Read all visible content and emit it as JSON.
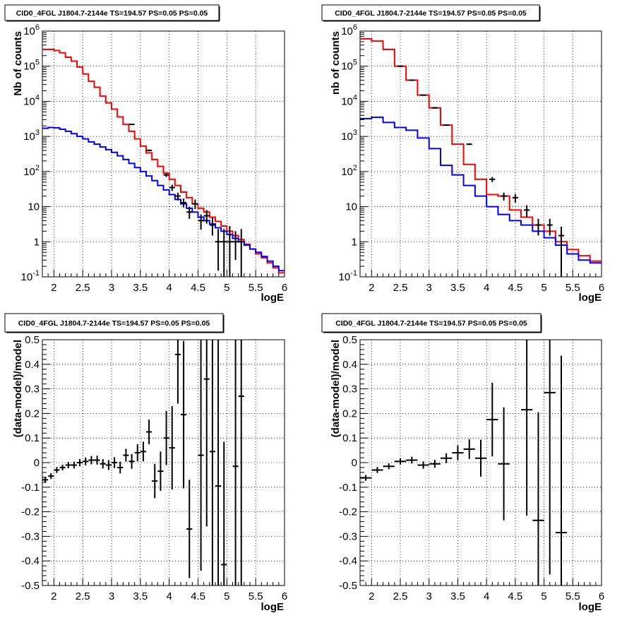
{
  "chart_data": [
    {
      "type": "line",
      "scale": "log",
      "title": "CID0_4FGL J1804.7-2144e TS=194.57 PS=0.05 PS=0.05",
      "xlabel": "logE",
      "ylabel": "Nb of counts",
      "xlim": [
        1.8,
        6.0
      ],
      "ylim": [
        0.1,
        1000000
      ],
      "x_ticks": [
        "2",
        "2.5",
        "3",
        "3.5",
        "4",
        "4.5",
        "5",
        "5.5",
        "6"
      ],
      "y_ticks": [
        "10^-1",
        "1",
        "10",
        "10^2",
        "10^3",
        "10^4",
        "10^5",
        "10^6"
      ],
      "grid": true,
      "bin_edges": [
        1.8,
        1.9,
        2.0,
        2.1,
        2.2,
        2.3,
        2.4,
        2.5,
        2.6,
        2.7,
        2.8,
        2.9,
        3.0,
        3.1,
        3.2,
        3.3,
        3.4,
        3.5,
        3.6,
        3.7,
        3.8,
        3.9,
        4.0,
        4.1,
        4.2,
        4.3,
        4.4,
        4.5,
        4.6,
        4.7,
        4.8,
        4.9,
        5.0,
        5.1,
        5.2,
        5.3,
        5.4,
        5.5,
        5.6,
        5.7,
        5.8,
        5.9,
        6.0
      ],
      "series": [
        {
          "color": "#ff0000",
          "values": [
            300000,
            300000,
            280000,
            240000,
            180000,
            140000,
            95000,
            60000,
            37000,
            25000,
            14000,
            9000,
            6000,
            3600,
            2200,
            1400,
            850,
            530,
            340,
            220,
            140,
            90,
            60,
            40,
            26,
            18,
            12,
            9,
            7,
            5,
            3.8,
            2.8,
            2.0,
            1.5,
            1.15,
            0.85,
            0.62,
            0.45,
            0.35,
            0.25,
            0.18,
            0.13
          ]
        },
        {
          "color": "#0000ff",
          "values": [
            1700,
            1800,
            1750,
            1600,
            1400,
            1200,
            1000,
            850,
            700,
            600,
            500,
            420,
            350,
            280,
            220,
            170,
            130,
            100,
            75,
            55,
            40,
            30,
            22,
            16,
            12,
            9,
            7,
            5,
            4,
            3.2,
            2.5,
            2.0,
            1.6,
            1.25,
            1.0,
            0.8,
            0.62,
            0.5,
            0.38,
            0.28,
            0.2,
            0.15
          ]
        }
      ],
      "points": [
        {
          "x": 3.35,
          "y": 2200,
          "lo": 2100,
          "hi": 2300
        },
        {
          "x": 3.65,
          "y": 400,
          "lo": 375,
          "hi": 425
        },
        {
          "x": 3.95,
          "y": 80,
          "lo": 70,
          "hi": 90
        },
        {
          "x": 4.05,
          "y": 35,
          "lo": 28,
          "hi": 42
        },
        {
          "x": 4.15,
          "y": 20,
          "lo": 15,
          "hi": 25
        },
        {
          "x": 4.25,
          "y": 13,
          "lo": 9.5,
          "hi": 17
        },
        {
          "x": 4.35,
          "y": 7,
          "lo": 4.5,
          "hi": 10
        },
        {
          "x": 4.45,
          "y": 12,
          "lo": 8.5,
          "hi": 16
        },
        {
          "x": 4.55,
          "y": 4,
          "lo": 2.2,
          "hi": 6
        },
        {
          "x": 4.65,
          "y": 5.5,
          "lo": 3.3,
          "hi": 8
        },
        {
          "x": 4.75,
          "y": 3,
          "lo": 1.5,
          "hi": 4.8
        },
        {
          "x": 4.85,
          "y": 1,
          "lo": 0.15,
          "hi": 2.3
        },
        {
          "x": 4.95,
          "y": 1,
          "lo": 0.1,
          "hi": 2.3
        },
        {
          "x": 5.05,
          "y": 1,
          "lo": 0.1,
          "hi": 2.8
        },
        {
          "x": 5.15,
          "y": 1,
          "lo": 0.3,
          "hi": 2.0
        },
        {
          "x": 5.25,
          "y": 1,
          "lo": 0.1,
          "hi": 2.3
        }
      ]
    },
    {
      "type": "line",
      "scale": "log",
      "title": "CID0_4FGL J1804.7-2144e TS=194.57 PS=0.05 PS=0.05",
      "xlabel": "logE",
      "ylabel": "nb of counts",
      "xlim": [
        1.8,
        6.0
      ],
      "ylim": [
        0.1,
        1000000
      ],
      "x_ticks": [
        "2",
        "2.5",
        "3",
        "3.5",
        "4",
        "4.5",
        "5",
        "5.5",
        "6"
      ],
      "y_ticks": [
        "10^-1",
        "1",
        "10",
        "10^2",
        "10^3",
        "10^4",
        "10^5",
        "10^6"
      ],
      "grid": true,
      "bin_edges": [
        1.8,
        2.0,
        2.2,
        2.4,
        2.6,
        2.8,
        3.0,
        3.2,
        3.4,
        3.6,
        3.8,
        4.0,
        4.2,
        4.4,
        4.6,
        4.8,
        5.0,
        5.2,
        5.4,
        5.6,
        5.8,
        6.0
      ],
      "series": [
        {
          "color": "#ff0000",
          "values": [
            600000,
            520000,
            300000,
            100000,
            40000,
            15000,
            6500,
            2100,
            600,
            160,
            60,
            22,
            20,
            8,
            5,
            3,
            2,
            1,
            0.6,
            0.4,
            0.28
          ]
        },
        {
          "color": "#0000ff",
          "values": [
            3200,
            3500,
            2500,
            1800,
            1500,
            900,
            450,
            150,
            80,
            40,
            20,
            10,
            6,
            4,
            3,
            2,
            1.3,
            0.8,
            0.45,
            0.3,
            0.25
          ]
        }
      ],
      "points": [
        {
          "x": 2.5,
          "y": 100000,
          "lo": 99000,
          "hi": 101000
        },
        {
          "x": 2.7,
          "y": 40000,
          "lo": 39500,
          "hi": 40500
        },
        {
          "x": 2.9,
          "y": 15000,
          "lo": 14800,
          "hi": 15200
        },
        {
          "x": 3.1,
          "y": 6500,
          "lo": 6400,
          "hi": 6600
        },
        {
          "x": 3.3,
          "y": 2100,
          "lo": 2050,
          "hi": 2150
        },
        {
          "x": 3.7,
          "y": 600,
          "lo": 570,
          "hi": 630
        },
        {
          "x": 4.1,
          "y": 60,
          "lo": 50,
          "hi": 70
        },
        {
          "x": 4.3,
          "y": 20,
          "lo": 15,
          "hi": 25
        },
        {
          "x": 4.5,
          "y": 18,
          "lo": 13,
          "hi": 23
        },
        {
          "x": 4.7,
          "y": 8,
          "lo": 5,
          "hi": 11
        },
        {
          "x": 4.9,
          "y": 3,
          "lo": 1.5,
          "hi": 4.5
        },
        {
          "x": 5.1,
          "y": 3,
          "lo": 1.5,
          "hi": 4.5
        },
        {
          "x": 5.3,
          "y": 1.5,
          "lo": 0.1,
          "hi": 2.7
        }
      ]
    },
    {
      "type": "scatter",
      "scale": "linear",
      "title": "CID0_4FGL J1804.7-2144e TS=194.57 PS=0.05 PS=0.05",
      "xlabel": "logE",
      "ylabel": "(data-model)/model",
      "xlim": [
        1.8,
        6.0
      ],
      "ylim": [
        -0.5,
        0.5
      ],
      "x_ticks": [
        "2",
        "2.5",
        "3",
        "3.5",
        "4",
        "4.5",
        "5",
        "5.5",
        "6"
      ],
      "y_ticks": [
        "-0.5",
        "-0.4",
        "-0.3",
        "-0.2",
        "-0.1",
        "0",
        "0.1",
        "0.2",
        "0.3",
        "0.4",
        "0.5"
      ],
      "grid": true,
      "half_width": 0.05,
      "points": [
        {
          "x": 1.85,
          "y": -0.07,
          "err": 0.012
        },
        {
          "x": 1.95,
          "y": -0.055,
          "err": 0.012
        },
        {
          "x": 2.05,
          "y": -0.03,
          "err": 0.012
        },
        {
          "x": 2.15,
          "y": -0.02,
          "err": 0.012
        },
        {
          "x": 2.25,
          "y": -0.01,
          "err": 0.013
        },
        {
          "x": 2.35,
          "y": -0.01,
          "err": 0.014
        },
        {
          "x": 2.45,
          "y": 0.0,
          "err": 0.015
        },
        {
          "x": 2.55,
          "y": 0.005,
          "err": 0.016
        },
        {
          "x": 2.65,
          "y": 0.01,
          "err": 0.017
        },
        {
          "x": 2.75,
          "y": 0.01,
          "err": 0.018
        },
        {
          "x": 2.85,
          "y": -0.005,
          "err": 0.019
        },
        {
          "x": 2.95,
          "y": -0.01,
          "err": 0.02
        },
        {
          "x": 3.05,
          "y": 0.0,
          "err": 0.022
        },
        {
          "x": 3.15,
          "y": -0.02,
          "err": 0.024
        },
        {
          "x": 3.25,
          "y": 0.03,
          "err": 0.026
        },
        {
          "x": 3.35,
          "y": 0.005,
          "err": 0.03
        },
        {
          "x": 3.45,
          "y": 0.04,
          "err": 0.035
        },
        {
          "x": 3.55,
          "y": 0.045,
          "err": 0.04
        },
        {
          "x": 3.65,
          "y": 0.125,
          "err": 0.05
        },
        {
          "x": 3.75,
          "y": -0.075,
          "err": 0.07
        },
        {
          "x": 3.85,
          "y": -0.035,
          "err": 0.08
        },
        {
          "x": 3.95,
          "y": 0.1,
          "err": 0.11
        },
        {
          "x": 4.05,
          "y": 0.06,
          "err": 0.17
        },
        {
          "x": 4.15,
          "y": 0.44,
          "err": 0.2
        },
        {
          "x": 4.25,
          "y": 0.195,
          "err": 0.3
        },
        {
          "x": 4.35,
          "y": -0.27,
          "err": 0.2
        },
        {
          "x": 4.55,
          "y": 0.03,
          "err": 0.47
        },
        {
          "x": 4.65,
          "y": 0.34,
          "err": 0.6
        },
        {
          "x": 4.75,
          "y": 0.045,
          "err": 0.6
        },
        {
          "x": 4.85,
          "y": -0.095,
          "err": 0.7
        },
        {
          "x": 4.95,
          "y": -0.415,
          "err": 0.5
        },
        {
          "x": 5.15,
          "y": -0.015,
          "err": 0.7
        },
        {
          "x": 5.25,
          "y": 0.27,
          "err": 0.9
        }
      ]
    },
    {
      "type": "scatter",
      "scale": "linear",
      "title": "CID0_4FGL J1804.7-2144e TS=194.57 PS=0.05 PS=0.05",
      "xlabel": "logE",
      "ylabel": "(data-model)/model",
      "xlim": [
        1.8,
        6.0
      ],
      "ylim": [
        -0.5,
        0.5
      ],
      "x_ticks": [
        "2",
        "2.5",
        "3",
        "3.5",
        "4",
        "4.5",
        "5",
        "5.5",
        "6"
      ],
      "y_ticks": [
        "-0.5",
        "-0.4",
        "-0.3",
        "-0.2",
        "-0.1",
        "0",
        "0.1",
        "0.2",
        "0.3",
        "0.4",
        "0.5"
      ],
      "grid": true,
      "half_width": 0.1,
      "points": [
        {
          "x": 1.9,
          "y": -0.062,
          "err": 0.012
        },
        {
          "x": 2.1,
          "y": -0.03,
          "err": 0.012
        },
        {
          "x": 2.3,
          "y": -0.015,
          "err": 0.012
        },
        {
          "x": 2.5,
          "y": 0.005,
          "err": 0.013
        },
        {
          "x": 2.7,
          "y": 0.01,
          "err": 0.014
        },
        {
          "x": 2.9,
          "y": -0.01,
          "err": 0.015
        },
        {
          "x": 3.1,
          "y": -0.005,
          "err": 0.016
        },
        {
          "x": 3.3,
          "y": 0.018,
          "err": 0.02
        },
        {
          "x": 3.5,
          "y": 0.04,
          "err": 0.03
        },
        {
          "x": 3.7,
          "y": 0.055,
          "err": 0.04
        },
        {
          "x": 3.9,
          "y": 0.018,
          "err": 0.075
        },
        {
          "x": 4.1,
          "y": 0.175,
          "err": 0.15
        },
        {
          "x": 4.3,
          "y": -0.005,
          "err": 0.23
        },
        {
          "x": 4.7,
          "y": 0.215,
          "err": 0.43
        },
        {
          "x": 4.9,
          "y": -0.235,
          "err": 0.44
        },
        {
          "x": 5.1,
          "y": 0.285,
          "err": 0.74
        },
        {
          "x": 5.3,
          "y": -0.285,
          "err": 0.72
        }
      ]
    }
  ]
}
